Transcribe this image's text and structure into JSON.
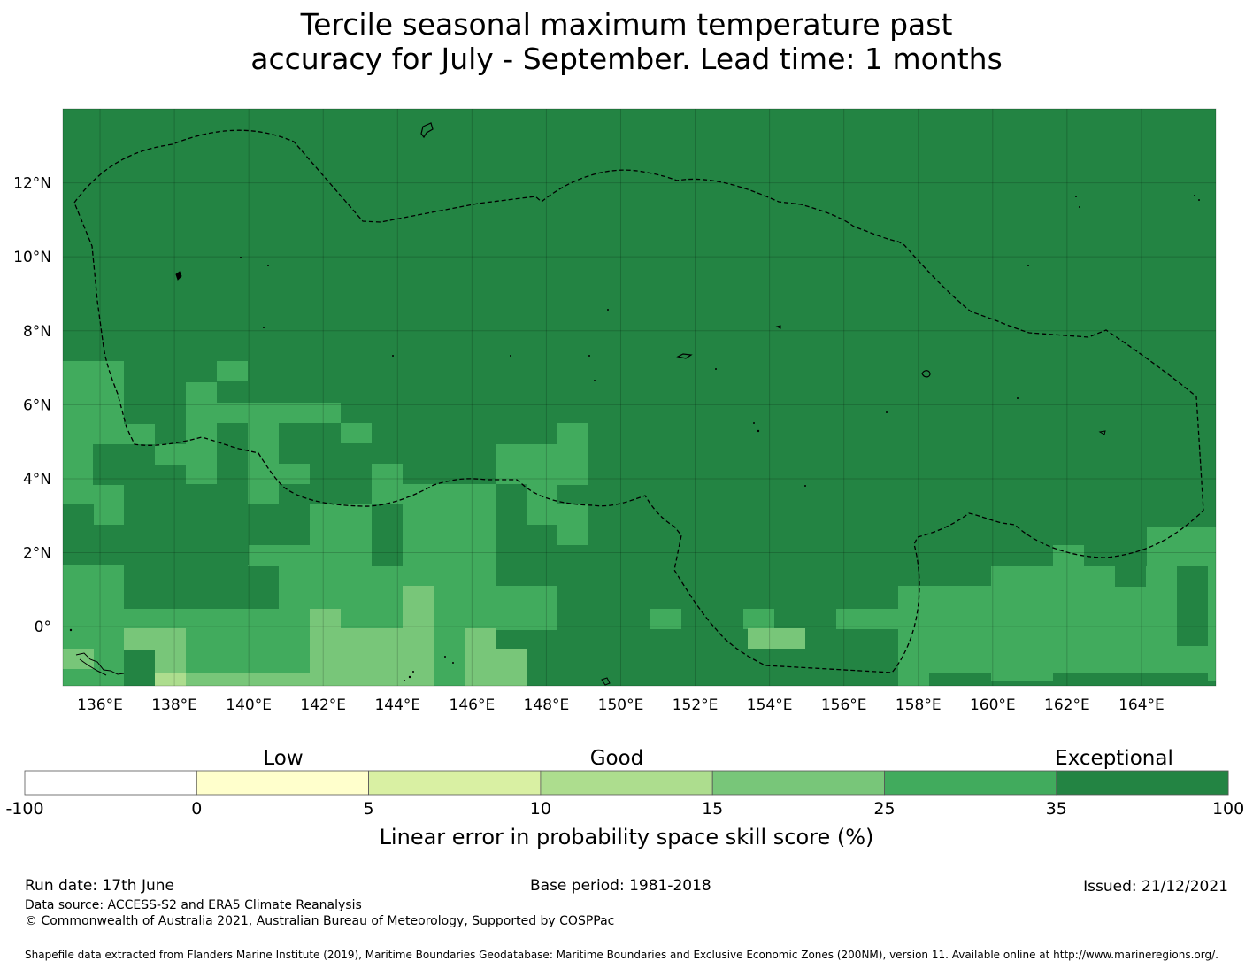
{
  "title": {
    "line1": "Tercile seasonal maximum temperature past",
    "line2": "accuracy for July - September. Lead time: 1 months"
  },
  "map": {
    "lon_range": [
      135,
      166
    ],
    "lat_range": [
      -1.6,
      14
    ],
    "lon_ticks": [
      "136°E",
      "138°E",
      "140°E",
      "142°E",
      "144°E",
      "146°E",
      "148°E",
      "150°E",
      "152°E",
      "154°E",
      "156°E",
      "158°E",
      "160°E",
      "162°E",
      "164°E"
    ],
    "lat_ticks": [
      "12°N",
      "10°N",
      "8°N",
      "6°N",
      "4°N",
      "2°N",
      "0°"
    ],
    "background_class": "Exceptional",
    "cell_size_deg": 0.83,
    "eez_boundary": "dashed",
    "coastlines": "thin black",
    "gridlines": true
  },
  "legend": {
    "boundaries": [
      "-100",
      "0",
      "5",
      "10",
      "15",
      "25",
      "35",
      "100"
    ],
    "colors": [
      "#ffffff",
      "#ffffcc",
      "#d9f0a3",
      "#addd8e",
      "#78c679",
      "#41ab5d",
      "#238443"
    ],
    "categories": [
      "Low",
      "Good",
      "Exceptional"
    ],
    "label": "Linear error in probability space skill score (%)"
  },
  "footer": {
    "run_date": "Run date: 17th June",
    "base_period": "Base period: 1981-2018",
    "issued": "Issued: 21/12/2021",
    "data_source": "Data source: ACCESS-S2 and ERA5 Climate Reanalysis",
    "copyright": "© Commonwealth of Australia 2021, Australian Bureau of Meteorology, Supported by COSPPac",
    "shapefile": "Shapefile data extracted from Flanders Marine Institute (2019), Maritime Boundaries Geodatabase: Maritime Boundaries and Exclusive Economic Zones (200NM), version 11. Available online at http://www.marineregions.org/."
  }
}
